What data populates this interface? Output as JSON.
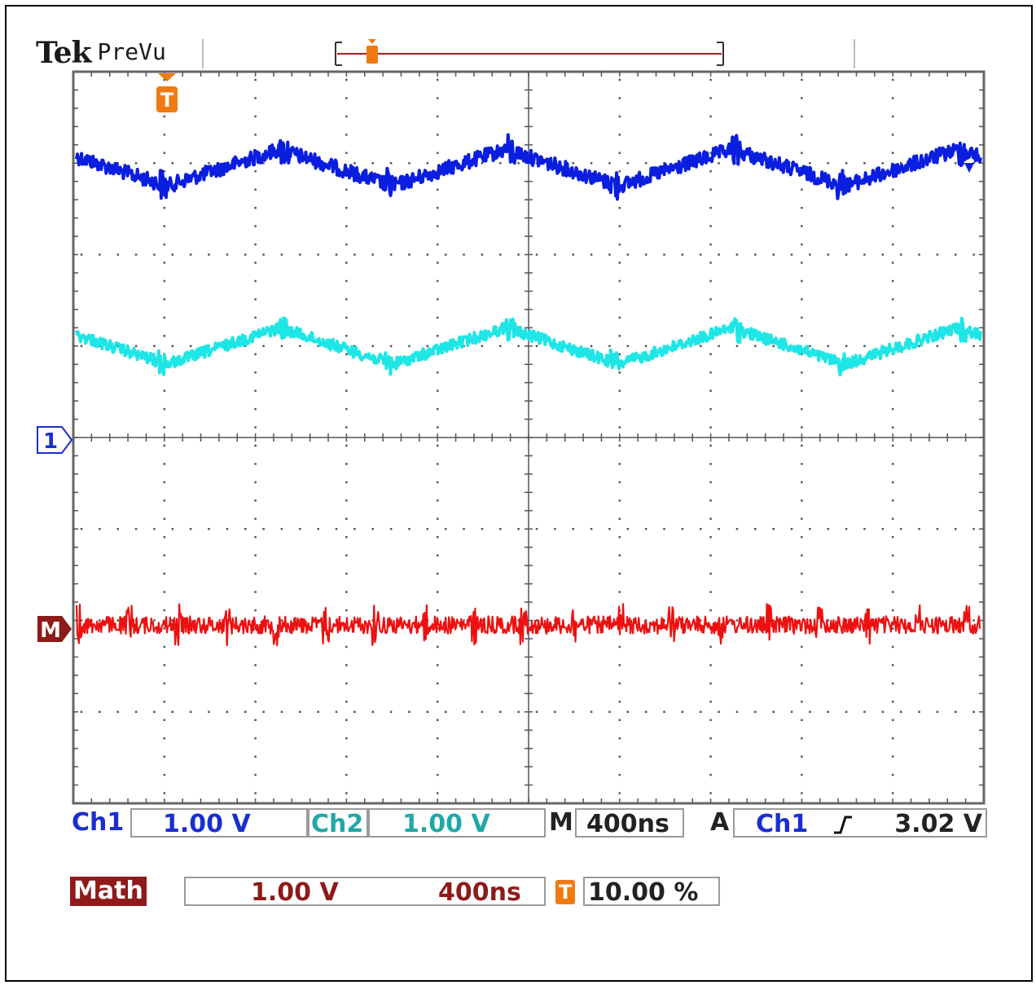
{
  "brand": {
    "name": "Tek",
    "mode": "PreVu"
  },
  "markers": {
    "trigger": "T",
    "ch1_ref": "1",
    "math_ref": "M"
  },
  "readout": {
    "ch1_label": "Ch1",
    "ch1_scale": "1.00 V",
    "ch2_label": "Ch2",
    "ch2_scale": "1.00 V",
    "time_label": "M",
    "time_scale": "400ns",
    "trigger_label": "A",
    "trigger_source": "Ch1",
    "trigger_slope": "rising-edge-icon",
    "trigger_level": "3.02 V",
    "math_label": "Math",
    "math_scale": "1.00 V",
    "math_time": "400ns",
    "trigger_pos_icon": "T",
    "trigger_pos": "10.00 %"
  },
  "colors": {
    "ch1": "#0a1ee0",
    "ch2": "#1fe6e6",
    "math": "#ee1010",
    "trigger": "#f07a10",
    "grid": "#555555"
  },
  "chart_data": {
    "type": "line",
    "grid": {
      "divisions_x": 10,
      "divisions_y": 8
    },
    "series": [
      {
        "name": "Ch1",
        "shape": "triangle-ish wave",
        "mean_div": 2.95,
        "amplitude_div": 0.2,
        "peaks_per_screen": 4
      },
      {
        "name": "Ch2",
        "shape": "triangle-ish wave",
        "mean_div": 1.0,
        "amplitude_div": 0.2,
        "peaks_per_screen": 4
      },
      {
        "name": "Math",
        "shape": "noise",
        "mean_div": -2.05,
        "amplitude_div": 0.12
      }
    ]
  }
}
